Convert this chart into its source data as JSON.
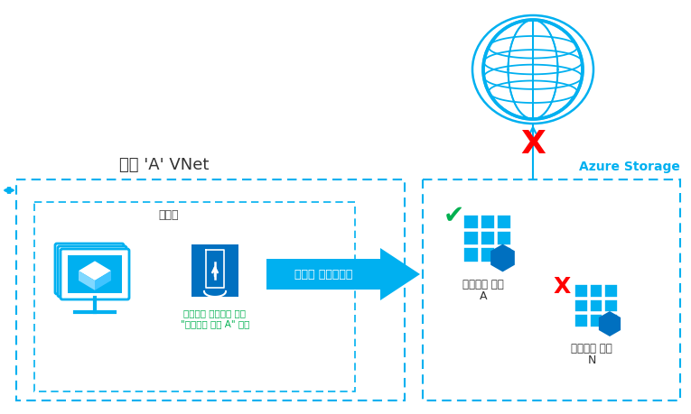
{
  "bg_color": "#ffffff",
  "cyan": "#00B0F0",
  "dark_cyan": "#0070C0",
  "green": "#00B050",
  "red": "#FF0000",
  "text_dark": "#333333",
  "vnet_label": "고객 'A' VNet",
  "subnet_label": "서븏넷",
  "storage_area_label": "Azure Storage",
  "service_ep_label": "서비스 엔드포인트",
  "policy_line1": "액세스를 허용하는 정책",
  "policy_line2": "\"스토리지 계정 A\" 전용",
  "storage_a_line1": "스토리지 계정",
  "storage_a_line2": "A",
  "storage_n_line1": "스토리지 계정",
  "storage_n_line2": "N"
}
